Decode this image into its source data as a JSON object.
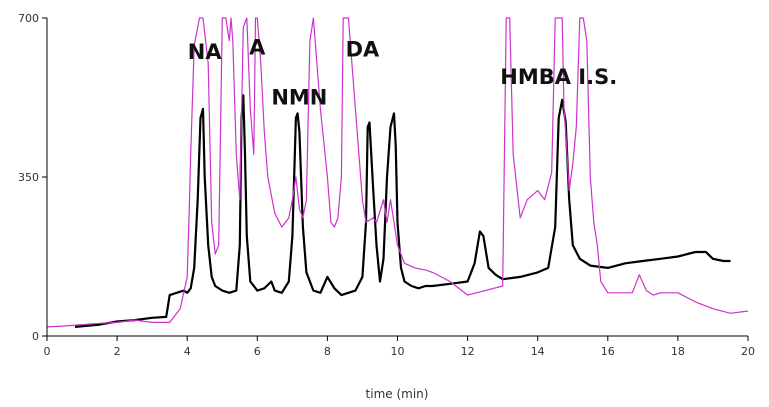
{
  "chart_data": {
    "type": "line",
    "title": "",
    "xlabel": "time (min)",
    "ylabel": "",
    "xlim": [
      0,
      20
    ],
    "ylim": [
      0,
      700
    ],
    "x_ticks": [
      0,
      2,
      4,
      6,
      8,
      10,
      12,
      14,
      16,
      18,
      20
    ],
    "y_ticks": [
      0,
      350,
      700
    ],
    "grid": false,
    "legend": "none",
    "annotations": [
      {
        "text": "NA",
        "x": 4.5,
        "y": 610
      },
      {
        "text": "A",
        "x": 6.0,
        "y": 620
      },
      {
        "text": "NMN",
        "x": 7.2,
        "y": 510
      },
      {
        "text": "DA",
        "x": 9.0,
        "y": 615
      },
      {
        "text": "HMBA I.S.",
        "x": 14.6,
        "y": 555
      }
    ],
    "series": [
      {
        "color": "#000000",
        "x": [
          0.8,
          1.5,
          2.0,
          2.5,
          3.0,
          3.4,
          3.5,
          3.7,
          3.9,
          4.0,
          4.1,
          4.2,
          4.3,
          4.38,
          4.45,
          4.5,
          4.6,
          4.7,
          4.8,
          5.0,
          5.2,
          5.4,
          5.5,
          5.55,
          5.6,
          5.65,
          5.7,
          5.8,
          6.0,
          6.2,
          6.4,
          6.5,
          6.7,
          6.9,
          7.0,
          7.1,
          7.15,
          7.2,
          7.3,
          7.4,
          7.6,
          7.8,
          8.0,
          8.2,
          8.4,
          8.6,
          8.8,
          9.0,
          9.1,
          9.15,
          9.2,
          9.3,
          9.4,
          9.5,
          9.6,
          9.7,
          9.8,
          9.9,
          9.95,
          10.0,
          10.1,
          10.2,
          10.4,
          10.6,
          10.8,
          11.0,
          11.5,
          12.0,
          12.2,
          12.35,
          12.45,
          12.6,
          12.8,
          13.0,
          13.5,
          14.0,
          14.3,
          14.5,
          14.6,
          14.7,
          14.8,
          14.9,
          15.0,
          15.2,
          15.5,
          16.0,
          16.5,
          17.0,
          17.5,
          18.0,
          18.5,
          18.8,
          19.0,
          19.3,
          19.5
        ],
        "y": [
          20,
          25,
          32,
          35,
          40,
          42,
          90,
          95,
          100,
          95,
          105,
          150,
          300,
          480,
          500,
          350,
          200,
          130,
          110,
          100,
          95,
          100,
          200,
          480,
          530,
          400,
          220,
          120,
          100,
          105,
          120,
          100,
          95,
          120,
          220,
          480,
          490,
          450,
          240,
          140,
          100,
          95,
          130,
          105,
          90,
          95,
          100,
          130,
          250,
          460,
          470,
          330,
          200,
          120,
          170,
          350,
          460,
          490,
          420,
          250,
          150,
          120,
          110,
          105,
          110,
          110,
          115,
          120,
          160,
          230,
          220,
          150,
          135,
          125,
          130,
          140,
          150,
          240,
          480,
          520,
          470,
          300,
          200,
          170,
          155,
          150,
          160,
          165,
          170,
          175,
          185,
          185,
          170,
          165,
          165
        ]
      },
      {
        "color": "#cc33cc",
        "x": [
          0.0,
          0.5,
          1.0,
          1.5,
          2.0,
          2.5,
          3.0,
          3.5,
          3.8,
          4.0,
          4.05,
          4.1,
          4.2,
          4.3,
          4.35,
          4.45,
          4.6,
          4.7,
          4.8,
          4.9,
          5.0,
          5.1,
          5.2,
          5.25,
          5.3,
          5.4,
          5.5,
          5.6,
          5.7,
          5.8,
          5.9,
          5.95,
          6.0,
          6.1,
          6.2,
          6.3,
          6.5,
          6.7,
          6.9,
          7.0,
          7.1,
          7.2,
          7.3,
          7.4,
          7.5,
          7.6,
          7.8,
          8.0,
          8.1,
          8.2,
          8.3,
          8.4,
          8.45,
          8.6,
          8.9,
          9.0,
          9.1,
          9.3,
          9.4,
          9.6,
          9.7,
          9.8,
          9.9,
          10.0,
          10.2,
          10.5,
          10.8,
          11.0,
          11.5,
          12.0,
          12.5,
          13.0,
          13.1,
          13.2,
          13.3,
          13.5,
          13.7,
          14.0,
          14.2,
          14.4,
          14.5,
          14.7,
          14.75,
          14.8,
          14.9,
          15.0,
          15.1,
          15.2,
          15.3,
          15.4,
          15.5,
          15.6,
          15.7,
          15.8,
          16.0,
          16.5,
          16.7,
          16.9,
          17.1,
          17.3,
          17.5,
          18.0,
          18.5,
          19.0,
          19.5,
          20.0
        ],
        "y": [
          20,
          22,
          25,
          28,
          30,
          35,
          30,
          30,
          60,
          130,
          260,
          400,
          640,
          680,
          700,
          700,
          600,
          250,
          180,
          200,
          700,
          700,
          650,
          700,
          650,
          400,
          300,
          680,
          700,
          500,
          400,
          700,
          700,
          600,
          450,
          350,
          270,
          240,
          260,
          300,
          350,
          280,
          260,
          300,
          650,
          700,
          500,
          350,
          250,
          240,
          260,
          350,
          700,
          700,
          400,
          300,
          250,
          260,
          250,
          300,
          250,
          300,
          250,
          200,
          160,
          150,
          145,
          140,
          120,
          90,
          100,
          110,
          700,
          700,
          400,
          260,
          300,
          320,
          300,
          360,
          700,
          700,
          500,
          450,
          320,
          380,
          460,
          700,
          700,
          650,
          350,
          250,
          200,
          120,
          95,
          95,
          95,
          135,
          100,
          90,
          95,
          95,
          75,
          60,
          50,
          55
        ]
      }
    ]
  }
}
